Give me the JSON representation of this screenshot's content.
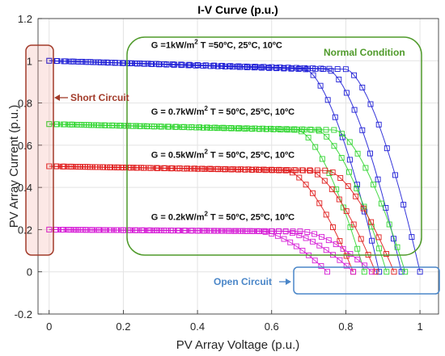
{
  "chart_data": {
    "type": "scatter",
    "title": "I-V Curve (p.u.)",
    "xlabel": "PV Array Voltage (p.u.)",
    "ylabel": "PV Array Current (p.u.)",
    "xlim": [
      -0.03,
      1.05
    ],
    "ylim": [
      -0.2,
      1.2
    ],
    "x_ticks": [
      "0",
      "0.2",
      "0.4",
      "0.6",
      "0.8",
      "1"
    ],
    "y_ticks": [
      "-0.2",
      "0",
      "0.2",
      "0.4",
      "0.6",
      "0.8",
      "1",
      "1.2"
    ],
    "grid": true,
    "marker": "square",
    "series": [
      {
        "irradiance": 1.0,
        "color": "#1f1fd6",
        "isc": 1.0,
        "voc": [
          0.89,
          0.95,
          1.0
        ],
        "knee": [
          0.69,
          0.75,
          0.8
        ]
      },
      {
        "irradiance": 0.7,
        "color": "#33d633",
        "isc": 0.7,
        "voc": [
          0.85,
          0.91,
          0.96
        ],
        "knee": [
          0.67,
          0.72,
          0.77
        ]
      },
      {
        "irradiance": 0.5,
        "color": "#e01e1e",
        "isc": 0.5,
        "voc": [
          0.82,
          0.88,
          0.93
        ],
        "knee": [
          0.64,
          0.7,
          0.75
        ]
      },
      {
        "irradiance": 0.2,
        "color": "#d61ed6",
        "isc": 0.2,
        "voc": [
          0.75,
          0.82,
          0.87
        ],
        "knee": [
          0.57,
          0.63,
          0.68
        ]
      }
    ],
    "annotations": [
      {
        "segments": [
          "G =1kW/m",
          "2",
          " T =50ºC, 25ºC, 10ºC"
        ],
        "x": 0.275,
        "y": 1.06
      },
      {
        "segments": [
          "G = 0.7kW/m",
          "2",
          " T = 50ºC, 25ºC, 10ºC"
        ],
        "x": 0.275,
        "y": 0.745
      },
      {
        "segments": [
          "G = 0.5kW/m",
          "2",
          " T = 50ºC, 25ºC, 10ºC"
        ],
        "x": 0.275,
        "y": 0.54
      },
      {
        "segments": [
          "G = 0.2kW/m",
          "2",
          " T = 50ºC, 25ºC, 10ºC"
        ],
        "x": 0.275,
        "y": 0.245
      }
    ],
    "regions": {
      "short_circuit": {
        "label": "Short Circuit",
        "color": "#a23b2a"
      },
      "normal": {
        "label": "Normal Condition",
        "color": "#4f9a2a"
      },
      "open_circuit": {
        "label": "Open Circuit",
        "color": "#4a86c8"
      }
    }
  }
}
